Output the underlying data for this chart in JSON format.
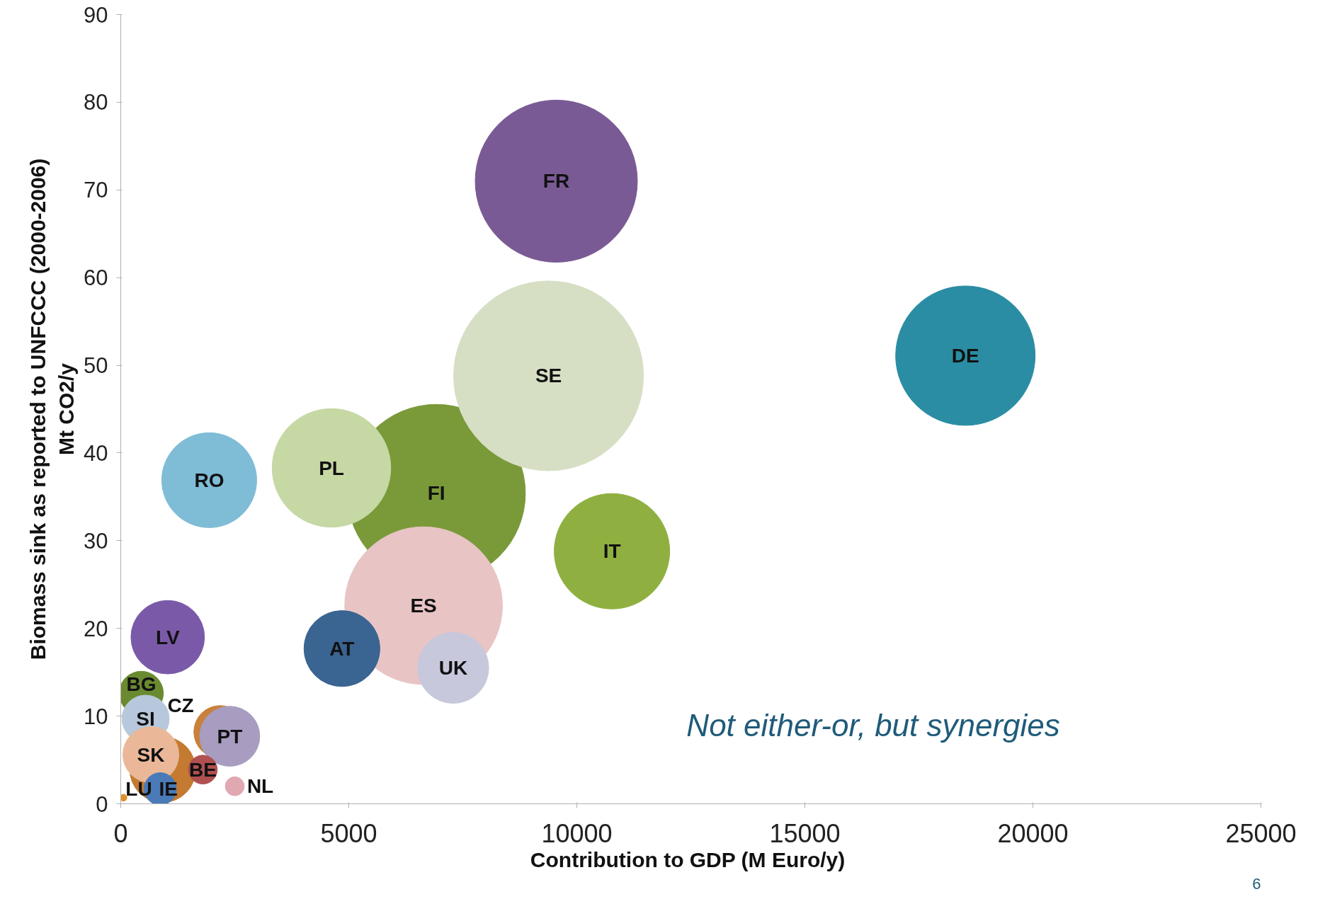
{
  "chart_data": {
    "type": "bubble",
    "xlabel": "Contribution to GDP  (M Euro/y)",
    "ylabel": "Biomass sink as reported to UNFCCC (2000-2006)\nMt CO2/y",
    "xlim": [
      0,
      25000
    ],
    "xticks": [
      0,
      5000,
      10000,
      15000,
      20000,
      25000
    ],
    "ylim": [
      0,
      90
    ],
    "yticks": [
      0,
      10,
      20,
      30,
      40,
      50,
      60,
      70,
      80,
      90
    ],
    "grid": false,
    "annotations": [
      "Not either-or, but synergies",
      "6"
    ],
    "series": [
      {
        "name": "FI",
        "color": "#7a9a3a",
        "x": [
          6920
        ],
        "values": [
          35.4
        ],
        "sizes": [
          0.88
        ]
      },
      {
        "name": "SE",
        "color": "#d6dfc4",
        "x": [
          9380
        ],
        "values": [
          48.8
        ],
        "sizes": [
          1
        ]
      },
      {
        "name": "FR",
        "color": "#7a5a94",
        "x": [
          9550
        ],
        "values": [
          71.0
        ],
        "sizes": [
          0.73
        ]
      },
      {
        "name": "DE",
        "color": "#2a8da3",
        "x": [
          18520
        ],
        "values": [
          51.1
        ],
        "sizes": [
          0.54
        ]
      },
      {
        "name": "PL",
        "color": "#c6d8a4",
        "x": [
          4620
        ],
        "values": [
          38.3
        ],
        "sizes": [
          0.39
        ]
      },
      {
        "name": "ES",
        "color": "#e8c4c4",
        "x": [
          6640
        ],
        "values": [
          22.6
        ],
        "sizes": [
          0.69
        ]
      },
      {
        "name": "IT",
        "color": "#8fb040",
        "x": [
          10770
        ],
        "values": [
          28.8
        ],
        "sizes": [
          0.37
        ]
      },
      {
        "name": "RO",
        "color": "#7fbcd6",
        "x": [
          1940
        ],
        "values": [
          36.9
        ],
        "sizes": [
          0.25
        ]
      },
      {
        "name": "AT",
        "color": "#3a6491",
        "x": [
          4850
        ],
        "values": [
          17.7
        ],
        "sizes": [
          0.16
        ]
      },
      {
        "name": "UK",
        "color": "#c8c8dc",
        "x": [
          7290
        ],
        "values": [
          15.5
        ],
        "sizes": [
          0.14
        ]
      },
      {
        "name": "LV",
        "color": "#7a5aa8",
        "x": [
          1030
        ],
        "values": [
          19.0
        ],
        "sizes": [
          0.15
        ]
      },
      {
        "color": "#c47a30",
        "x": [
          920
        ],
        "values": [
          3.9
        ],
        "sizes": [
          0.12
        ]
      },
      {
        "name": "BG",
        "color": "#6a8a30",
        "x": [
          450
        ],
        "values": [
          12.6
        ],
        "sizes": [
          0.054
        ]
      },
      {
        "name": "SI",
        "color": "#b8c8dc",
        "x": [
          545
        ],
        "values": [
          9.7
        ],
        "sizes": [
          0.062
        ]
      },
      {
        "name": "CZ",
        "color": "#c9803a",
        "x": [
          2180
        ],
        "values": [
          8.2
        ],
        "sizes": [
          0.077
        ]
      },
      {
        "name": "PT",
        "color": "#a89cc0",
        "x": [
          2390
        ],
        "values": [
          7.7
        ],
        "sizes": [
          0.1
        ]
      },
      {
        "name": "SK",
        "color": "#eab898",
        "x": [
          660
        ],
        "values": [
          5.6
        ],
        "sizes": [
          0.087
        ]
      },
      {
        "name": "BE",
        "color": "#b05050",
        "x": [
          1800
        ],
        "values": [
          3.9
        ],
        "sizes": [
          0.023
        ]
      },
      {
        "name": "IE",
        "color": "#4a7ab8",
        "x": [
          865
        ],
        "values": [
          1.7
        ],
        "sizes": [
          0.029
        ]
      },
      {
        "name": "NL",
        "color": "#e0a8b0",
        "x": [
          2500
        ],
        "values": [
          2.0
        ],
        "sizes": [
          0.01
        ]
      },
      {
        "name": "LU",
        "color": "#e0902a",
        "x": [
          60
        ],
        "values": [
          0.7
        ],
        "sizes": [
          0.0013
        ]
      }
    ]
  }
}
